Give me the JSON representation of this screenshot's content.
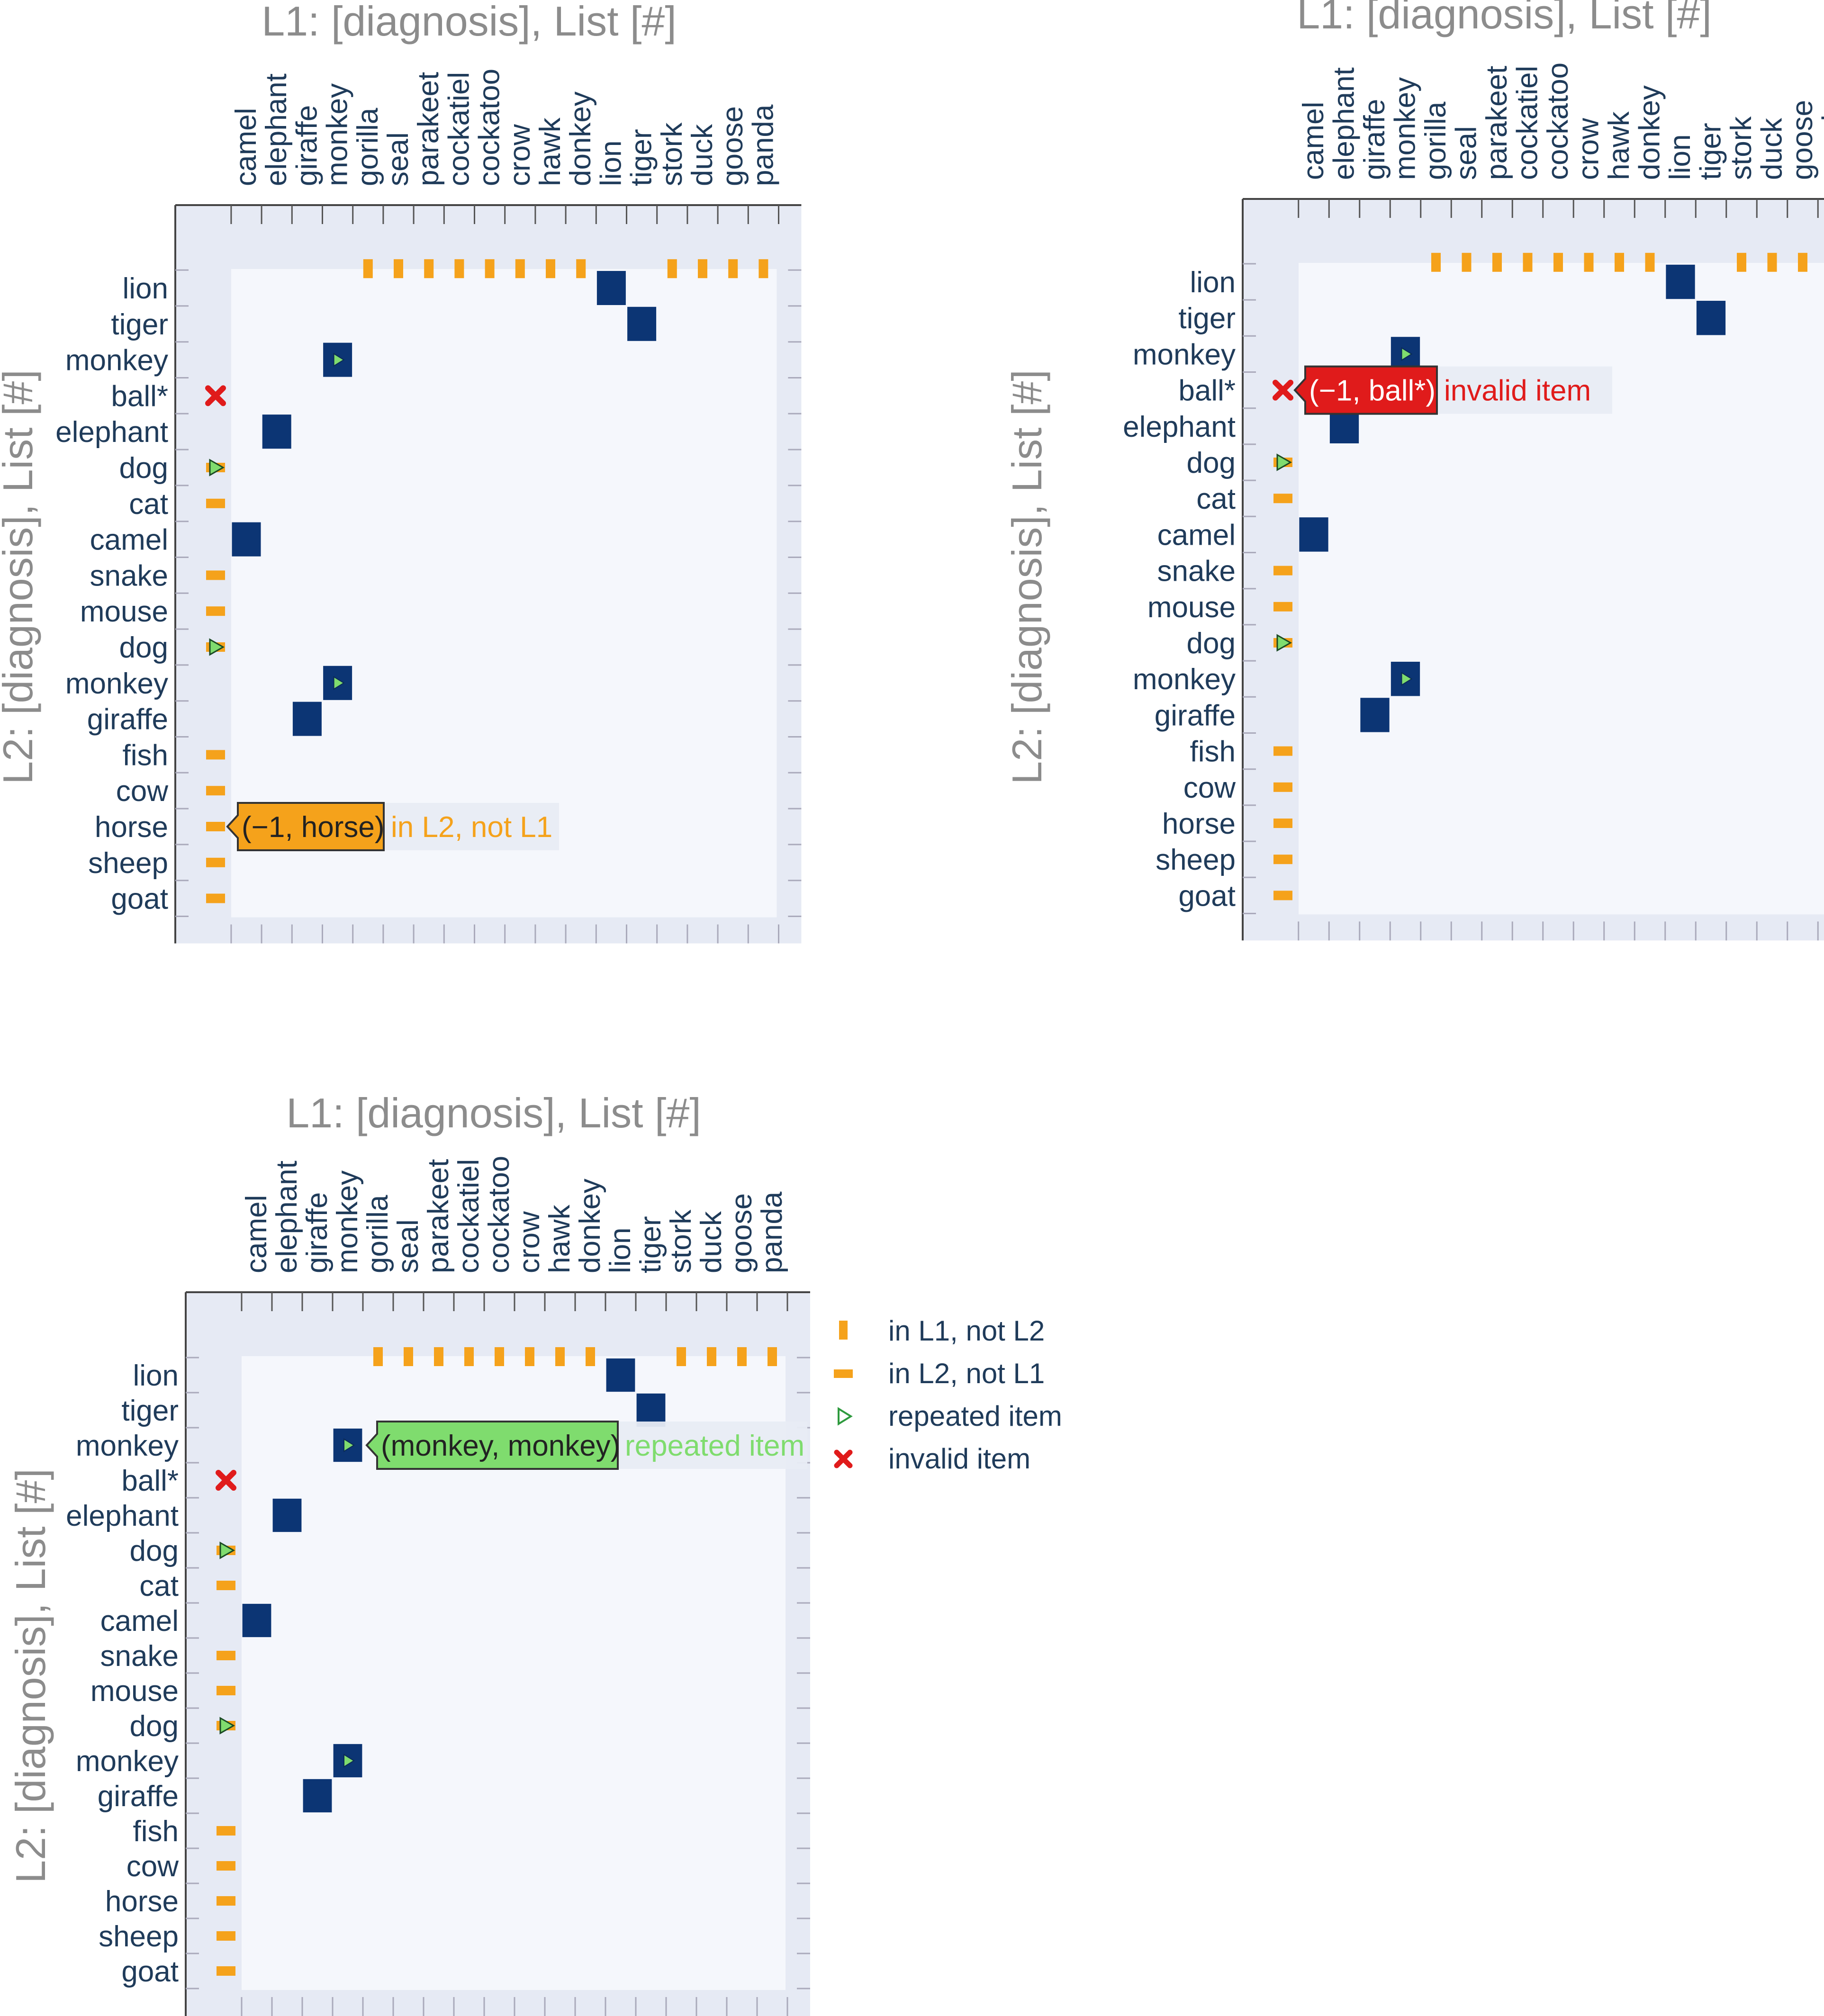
{
  "colors": {
    "match": "#0c3574",
    "unmatched": "#f5a21b",
    "repeated": "#7fdc6e",
    "invalid": "#e01b1b",
    "margin_band": "#e6eaf4",
    "inner_field": "#f5f7fc",
    "title_gray": "#8c8c8c",
    "tick_text": "#1f3b5a"
  },
  "legend": [
    {
      "symbol": "vertical-bar-icon",
      "label": "in L1, not L2"
    },
    {
      "symbol": "horizontal-bar-icon",
      "label": "in L2, not L1"
    },
    {
      "symbol": "triangle-right-icon",
      "label": "repeated item"
    },
    {
      "symbol": "x-cross-icon",
      "label": "invalid item"
    }
  ],
  "chart_data": [
    {
      "type": "heatmap",
      "title": "L1: [diagnosis], List [#]",
      "xlabel": "L1: [diagnosis], List [#]",
      "ylabel": "L2: [diagnosis], List [#]",
      "x_categories": [
        "camel",
        "elephant",
        "giraffe",
        "monkey",
        "gorilla",
        "seal",
        "parakeet",
        "cockatiel",
        "cockatoo",
        "crow",
        "hawk",
        "donkey",
        "lion",
        "tiger",
        "stork",
        "duck",
        "goose",
        "panda"
      ],
      "y_categories": [
        "lion",
        "tiger",
        "monkey",
        "ball*",
        "elephant",
        "dog",
        "cat",
        "camel",
        "snake",
        "mouse",
        "dog",
        "monkey",
        "giraffe",
        "fish",
        "cow",
        "horse",
        "sheep",
        "goat"
      ],
      "matches": [
        [
          0,
          12
        ],
        [
          1,
          13
        ],
        [
          2,
          3
        ],
        [
          4,
          1
        ],
        [
          7,
          0
        ],
        [
          11,
          3
        ],
        [
          12,
          2
        ]
      ],
      "repeated_matches": [
        2,
        11
      ],
      "l1_not_l2": [
        4,
        5,
        6,
        7,
        8,
        9,
        10,
        11,
        14,
        15,
        16,
        17
      ],
      "l2_not_l1": [
        6,
        8,
        9,
        13,
        14,
        15,
        16,
        17
      ],
      "repeated_rows": [
        5,
        10
      ],
      "invalid_rows": [
        3
      ],
      "tooltip": {
        "row": 15,
        "col": -1,
        "label": "(−1, horse)",
        "extra": "in L2, not L1",
        "kind": "unmatched"
      }
    },
    {
      "type": "heatmap",
      "title": "L1: [diagnosis], List [#]",
      "xlabel": "L1: [diagnosis], List [#]",
      "ylabel": "L2: [diagnosis], List [#]",
      "x_categories": [
        "camel",
        "elephant",
        "giraffe",
        "monkey",
        "gorilla",
        "seal",
        "parakeet",
        "cockatiel",
        "cockatoo",
        "crow",
        "hawk",
        "donkey",
        "lion",
        "tiger",
        "stork",
        "duck",
        "goose",
        "panda"
      ],
      "y_categories": [
        "lion",
        "tiger",
        "monkey",
        "ball*",
        "elephant",
        "dog",
        "cat",
        "camel",
        "snake",
        "mouse",
        "dog",
        "monkey",
        "giraffe",
        "fish",
        "cow",
        "horse",
        "sheep",
        "goat"
      ],
      "matches": [
        [
          0,
          12
        ],
        [
          1,
          13
        ],
        [
          2,
          3
        ],
        [
          4,
          1
        ],
        [
          7,
          0
        ],
        [
          11,
          3
        ],
        [
          12,
          2
        ]
      ],
      "repeated_matches": [
        2,
        11
      ],
      "l1_not_l2": [
        4,
        5,
        6,
        7,
        8,
        9,
        10,
        11,
        14,
        15,
        16,
        17
      ],
      "l2_not_l1": [
        6,
        8,
        9,
        13,
        14,
        15,
        16,
        17
      ],
      "repeated_rows": [
        5,
        10
      ],
      "invalid_rows": [
        3
      ],
      "tooltip": {
        "row": 3,
        "col": -1,
        "label": "(−1, ball*)",
        "extra": "invalid item",
        "kind": "invalid"
      }
    },
    {
      "type": "heatmap",
      "title": "L1: [diagnosis], List [#]",
      "xlabel": "L1: [diagnosis], List [#]",
      "ylabel": "L2: [diagnosis], List [#]",
      "x_categories": [
        "camel",
        "elephant",
        "giraffe",
        "monkey",
        "gorilla",
        "seal",
        "parakeet",
        "cockatiel",
        "cockatoo",
        "crow",
        "hawk",
        "donkey",
        "lion",
        "tiger",
        "stork",
        "duck",
        "goose",
        "panda"
      ],
      "y_categories": [
        "lion",
        "tiger",
        "monkey",
        "ball*",
        "elephant",
        "dog",
        "cat",
        "camel",
        "snake",
        "mouse",
        "dog",
        "monkey",
        "giraffe",
        "fish",
        "cow",
        "horse",
        "sheep",
        "goat"
      ],
      "matches": [
        [
          0,
          12
        ],
        [
          1,
          13
        ],
        [
          2,
          3
        ],
        [
          4,
          1
        ],
        [
          7,
          0
        ],
        [
          11,
          3
        ],
        [
          12,
          2
        ]
      ],
      "repeated_matches": [
        2,
        11
      ],
      "l1_not_l2": [
        4,
        5,
        6,
        7,
        8,
        9,
        10,
        11,
        14,
        15,
        16,
        17
      ],
      "l2_not_l1": [
        6,
        8,
        9,
        13,
        14,
        15,
        16,
        17
      ],
      "repeated_rows": [
        5,
        10
      ],
      "invalid_rows": [
        3
      ],
      "tooltip": {
        "row": 2,
        "col": 3,
        "label": "(monkey, monkey)",
        "extra": "repeated item",
        "kind": "repeated"
      }
    }
  ]
}
